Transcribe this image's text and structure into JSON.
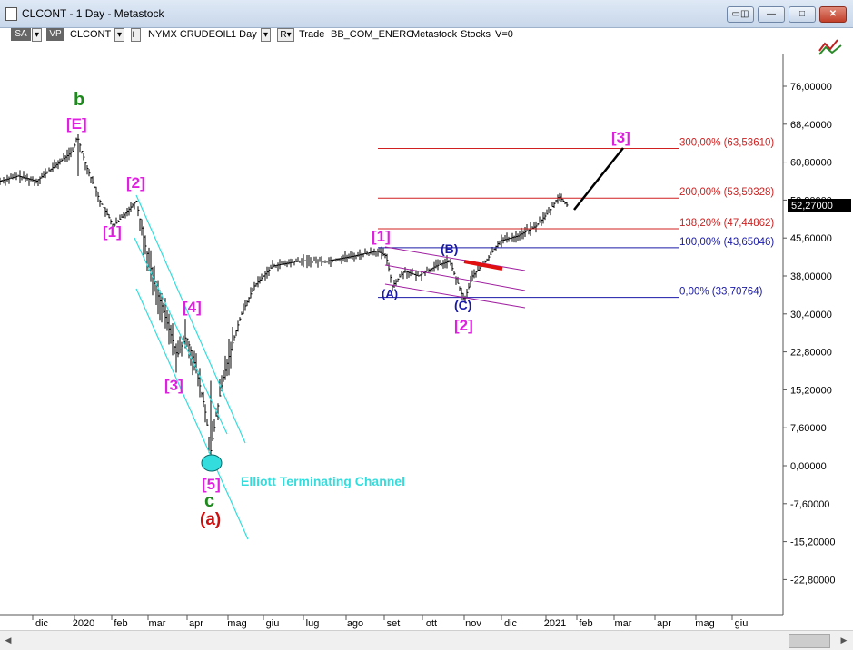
{
  "window": {
    "title": "CLCONT - 1 Day - Metastock",
    "buttons": {
      "restore": "▭◫",
      "minimize": "—",
      "maximize": "□",
      "close": "✕"
    }
  },
  "toolbar": {
    "sa": "SA",
    "vp": "VP",
    "symbol": "CLCONT",
    "description": "NYMX CRUDEOIL",
    "period": "1 Day",
    "r_mark": "R",
    "trade": "Trade",
    "expert": "BB_COM_ENERG",
    "source": "Metastock",
    "type": "Stocks",
    "volume": "V=0"
  },
  "price_axis": {
    "ticks": [
      "76,00000",
      "68,40000",
      "60,80000",
      "53,20000",
      "45,60000",
      "38,00000",
      "30,40000",
      "22,80000",
      "15,20000",
      "7,60000",
      "0,00000",
      "-7,60000",
      "-15,20000",
      "-22,80000"
    ],
    "current_price": "52,27000"
  },
  "time_axis": {
    "labels": [
      "dic",
      "2020",
      "feb",
      "mar",
      "apr",
      "mag",
      "giu",
      "lug",
      "ago",
      "set",
      "ott",
      "nov",
      "dic",
      "2021",
      "feb",
      "mar",
      "apr",
      "mag",
      "giu"
    ]
  },
  "fib_levels": [
    {
      "label": "300,00% (63,53610)",
      "value": 63.5361,
      "color": "#d02020"
    },
    {
      "label": "200,00% (53,59328)",
      "value": 53.59328,
      "color": "#d02020"
    },
    {
      "label": "138,20% (47,44862)",
      "value": 47.44862,
      "color": "#d02020"
    },
    {
      "label": "100,00% (43,65046)",
      "value": 43.65046,
      "color": "#1a1aa8"
    },
    {
      "label": "0,00% (33,70764)",
      "value": 33.70764,
      "color": "#1a1aa8"
    }
  ],
  "wave_labels": {
    "b": "b",
    "E": "[E]",
    "w1": "[1]",
    "w2": "[2]",
    "w3": "[3]",
    "w4": "[4]",
    "w5": "[5]",
    "c": "c",
    "a_red": "(a)",
    "w1b": "[1]",
    "A": "(A)",
    "B": "(B)",
    "C": "(C)",
    "w2b": "[2]",
    "w3b": "[3]"
  },
  "annotations": {
    "channel": "Elliott Terminating Channel"
  },
  "colors": {
    "wave_magenta": "#e020e0",
    "wave_green": "#1e8a1e",
    "wave_red": "#d01010",
    "wave_blue": "#1a1aa8",
    "channel_cyan": "#33dddd",
    "channel_purple": "#a020a0",
    "price_bars": "#000000"
  },
  "chart_data": {
    "type": "ohlc",
    "title": "CLCONT - 1 Day",
    "x": [
      "2019-11",
      "2019-12",
      "2020-01",
      "2020-02",
      "2020-03",
      "2020-04",
      "2020-05",
      "2020-06",
      "2020-07",
      "2020-08",
      "2020-09",
      "2020-10",
      "2020-11",
      "2020-12",
      "2021-01"
    ],
    "close_approx": [
      57,
      61,
      64,
      50,
      22,
      4,
      30,
      38,
      40,
      42,
      40,
      37,
      44,
      49,
      52.27
    ],
    "ylim": [
      -27,
      82
    ],
    "fib_levels": [
      63.5361,
      53.59328,
      47.44862,
      43.65046,
      33.70764
    ]
  }
}
